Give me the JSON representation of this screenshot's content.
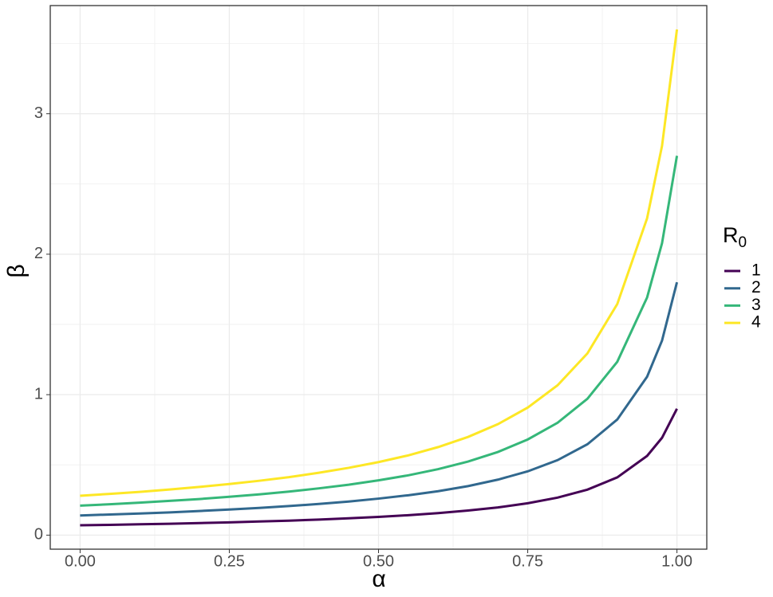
{
  "chart_data": {
    "type": "line",
    "x_label": "α",
    "y_label": "β",
    "legend_title": {
      "text": "R",
      "subscript": "0"
    },
    "x": [
      0,
      0.05,
      0.1,
      0.15,
      0.2,
      0.25,
      0.3,
      0.35,
      0.4,
      0.45,
      0.5,
      0.55,
      0.6,
      0.65,
      0.7,
      0.75,
      0.8,
      0.85,
      0.9,
      0.95,
      0.975,
      1
    ],
    "series": [
      {
        "name": "1",
        "color": "#440154",
        "values": [
          0.07,
          0.073,
          0.077,
          0.081,
          0.086,
          0.091,
          0.097,
          0.103,
          0.111,
          0.12,
          0.13,
          0.142,
          0.157,
          0.175,
          0.197,
          0.227,
          0.267,
          0.324,
          0.411,
          0.564,
          0.693,
          0.9
        ]
      },
      {
        "name": "2",
        "color": "#31688e",
        "values": [
          0.14,
          0.147,
          0.154,
          0.162,
          0.172,
          0.182,
          0.194,
          0.207,
          0.222,
          0.239,
          0.26,
          0.284,
          0.313,
          0.349,
          0.395,
          0.454,
          0.534,
          0.647,
          0.823,
          1.128,
          1.385,
          1.8
        ]
      },
      {
        "name": "3",
        "color": "#35b779",
        "values": [
          0.21,
          0.22,
          0.231,
          0.244,
          0.257,
          0.273,
          0.29,
          0.31,
          0.333,
          0.359,
          0.39,
          0.426,
          0.47,
          0.524,
          0.592,
          0.681,
          0.8,
          0.971,
          1.234,
          1.692,
          2.078,
          2.7
        ]
      },
      {
        "name": "4",
        "color": "#fde725",
        "values": [
          0.28,
          0.294,
          0.308,
          0.325,
          0.343,
          0.364,
          0.387,
          0.413,
          0.444,
          0.479,
          0.52,
          0.568,
          0.627,
          0.699,
          0.79,
          0.908,
          1.067,
          1.294,
          1.645,
          2.256,
          2.771,
          3.6
        ]
      }
    ],
    "xlim": [
      -0.05,
      1.05
    ],
    "xticks": [
      {
        "value": 0,
        "label": "0.00"
      },
      {
        "value": 0.25,
        "label": "0.25"
      },
      {
        "value": 0.5,
        "label": "0.50"
      },
      {
        "value": 0.75,
        "label": "0.75"
      },
      {
        "value": 1,
        "label": "1.00"
      }
    ],
    "ylim": [
      -0.1,
      3.77
    ],
    "yticks": [
      0,
      1,
      2,
      3
    ],
    "grid": true,
    "legend_position": "right"
  }
}
